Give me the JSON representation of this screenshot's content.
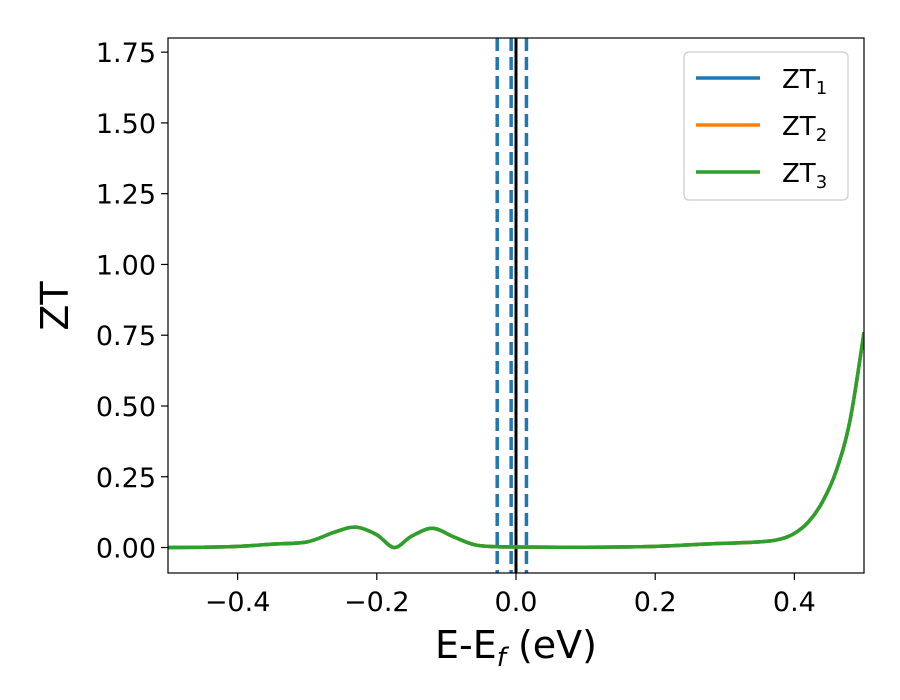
{
  "chart_data": {
    "type": "line",
    "xlabel": "E-E",
    "xlabel_subscript": "f",
    "xlabel_unit": "(eV)",
    "ylabel": "ZT",
    "xlim": [
      -0.5,
      0.5
    ],
    "ylim": [
      -0.09,
      1.8
    ],
    "x_ticks": [
      -0.4,
      -0.2,
      0.0,
      0.2,
      0.4
    ],
    "x_tick_labels": [
      "−0.4",
      "−0.2",
      "0.0",
      "0.2",
      "0.4"
    ],
    "y_ticks": [
      0.0,
      0.25,
      0.5,
      0.75,
      1.0,
      1.25,
      1.5,
      1.75
    ],
    "y_tick_labels": [
      "0.00",
      "0.25",
      "0.50",
      "0.75",
      "1.00",
      "1.25",
      "1.50",
      "1.75"
    ],
    "grid": false,
    "legend_position": "top-right",
    "series": [
      {
        "name": "ZT",
        "subscript": "1",
        "color": "#1f77b4",
        "x": [
          -0.5,
          -0.45,
          -0.4,
          -0.35,
          -0.3,
          -0.26,
          -0.23,
          -0.2,
          -0.175,
          -0.15,
          -0.12,
          -0.09,
          -0.06,
          -0.03,
          0.0,
          0.1,
          0.2,
          0.27,
          0.35,
          0.38,
          0.4,
          0.42,
          0.44,
          0.46,
          0.48,
          0.5
        ],
        "y": [
          0.0,
          0.001,
          0.004,
          0.012,
          0.02,
          0.055,
          0.072,
          0.045,
          0.0,
          0.04,
          0.068,
          0.038,
          0.01,
          0.003,
          0.002,
          0.001,
          0.004,
          0.012,
          0.02,
          0.03,
          0.05,
          0.09,
          0.16,
          0.27,
          0.45,
          0.76
        ]
      },
      {
        "name": "ZT",
        "subscript": "2",
        "color": "#ff7f0e",
        "x": [
          -0.5,
          -0.45,
          -0.4,
          -0.35,
          -0.3,
          -0.26,
          -0.23,
          -0.2,
          -0.175,
          -0.15,
          -0.12,
          -0.09,
          -0.06,
          -0.03,
          0.0,
          0.1,
          0.2,
          0.27,
          0.35,
          0.38,
          0.4,
          0.42,
          0.44,
          0.46,
          0.48,
          0.5
        ],
        "y": [
          0.0,
          0.001,
          0.004,
          0.012,
          0.02,
          0.055,
          0.072,
          0.045,
          0.0,
          0.04,
          0.068,
          0.038,
          0.01,
          0.003,
          0.002,
          0.001,
          0.004,
          0.012,
          0.02,
          0.03,
          0.05,
          0.09,
          0.16,
          0.27,
          0.45,
          0.76
        ]
      },
      {
        "name": "ZT",
        "subscript": "3",
        "color": "#2ca02c",
        "x": [
          -0.5,
          -0.45,
          -0.4,
          -0.35,
          -0.3,
          -0.26,
          -0.23,
          -0.2,
          -0.175,
          -0.15,
          -0.12,
          -0.09,
          -0.06,
          -0.03,
          0.0,
          0.1,
          0.2,
          0.27,
          0.35,
          0.38,
          0.4,
          0.42,
          0.44,
          0.46,
          0.48,
          0.5
        ],
        "y": [
          0.0,
          0.001,
          0.004,
          0.012,
          0.02,
          0.055,
          0.072,
          0.045,
          0.0,
          0.04,
          0.068,
          0.038,
          0.01,
          0.003,
          0.002,
          0.001,
          0.004,
          0.012,
          0.02,
          0.03,
          0.05,
          0.09,
          0.16,
          0.27,
          0.45,
          0.76
        ]
      }
    ],
    "vertical_lines": [
      {
        "x": -0.027,
        "style": "dashed",
        "color": "#1f77b4"
      },
      {
        "x": -0.007,
        "style": "dashed",
        "color": "#1f77b4"
      },
      {
        "x": 0.015,
        "style": "dashed",
        "color": "#1f77b4"
      },
      {
        "x": 0.0,
        "style": "solid",
        "color": "#000000"
      }
    ]
  }
}
